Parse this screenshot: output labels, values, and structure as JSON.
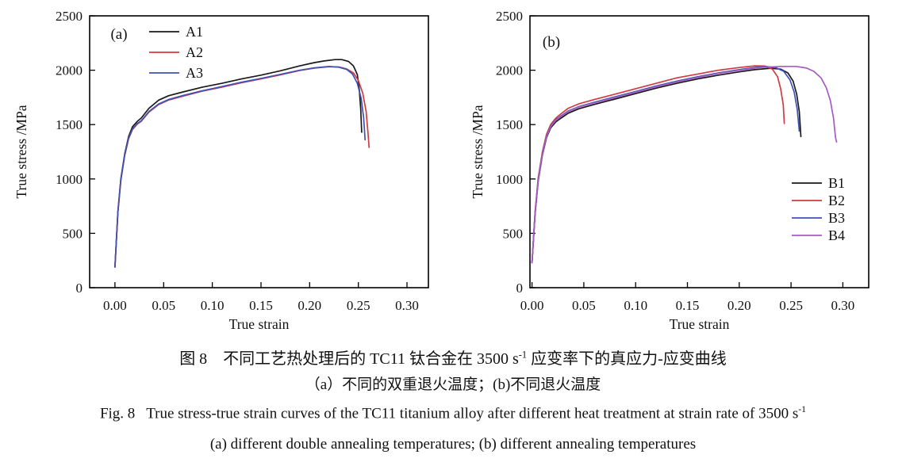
{
  "captions": {
    "zh_line1": {
      "pre": "图 8　不同工艺热处理后的 TC11 钛合金在 3500 s",
      "sup": "-1",
      "post": " 应变率下的真应力-应变曲线"
    },
    "zh_line2": "（a）不同的双重退火温度；(b)不同退火温度",
    "en_line1": {
      "pre": "Fig. 8   True stress-true strain curves of the TC11 titanium alloy after different heat treatment at strain rate of 3500 s",
      "sup": "-1"
    },
    "en_line2": "(a) different double annealing temperatures; (b) different annealing temperatures"
  },
  "colors": {
    "axis": "#000000",
    "black_series": "#1a1a1a",
    "red_series": "#d23a41",
    "blue_series": "#3f51b5",
    "purple_series": "#a55cc0"
  },
  "chart_data": [
    {
      "type": "line",
      "panel_label": "(a)",
      "xlabel": "True strain",
      "ylabel": "True stress /MPa",
      "xlim": [
        -0.026,
        0.322
      ],
      "ylim": [
        0,
        2500
      ],
      "x_ticks": [
        0.0,
        0.05,
        0.1,
        0.15,
        0.2,
        0.25,
        0.3
      ],
      "x_tick_labels": [
        "0.00",
        "0.05",
        "0.10",
        "0.15",
        "0.20",
        "0.25",
        "0.30"
      ],
      "y_ticks": [
        0,
        500,
        1000,
        1500,
        2000,
        2500
      ],
      "y_tick_labels": [
        "0",
        "500",
        "1000",
        "1500",
        "2000",
        "2500"
      ],
      "grid": false,
      "legend_position": "top-left-inside",
      "series": [
        {
          "name": "A1",
          "color": "#1a1a1a",
          "points": [
            [
              0.0,
              190
            ],
            [
              0.003,
              700
            ],
            [
              0.006,
              1000
            ],
            [
              0.01,
              1230
            ],
            [
              0.014,
              1390
            ],
            [
              0.018,
              1480
            ],
            [
              0.023,
              1530
            ],
            [
              0.027,
              1560
            ],
            [
              0.035,
              1650
            ],
            [
              0.045,
              1725
            ],
            [
              0.055,
              1765
            ],
            [
              0.07,
              1800
            ],
            [
              0.09,
              1845
            ],
            [
              0.11,
              1880
            ],
            [
              0.13,
              1920
            ],
            [
              0.15,
              1955
            ],
            [
              0.17,
              1995
            ],
            [
              0.19,
              2040
            ],
            [
              0.205,
              2070
            ],
            [
              0.215,
              2085
            ],
            [
              0.226,
              2098
            ],
            [
              0.233,
              2098
            ],
            [
              0.24,
              2080
            ],
            [
              0.245,
              2040
            ],
            [
              0.249,
              1960
            ],
            [
              0.251,
              1820
            ],
            [
              0.2525,
              1640
            ],
            [
              0.2535,
              1430
            ]
          ]
        },
        {
          "name": "A2",
          "color": "#d23a41",
          "points": [
            [
              0.0,
              190
            ],
            [
              0.003,
              690
            ],
            [
              0.006,
              985
            ],
            [
              0.01,
              1215
            ],
            [
              0.014,
              1370
            ],
            [
              0.018,
              1455
            ],
            [
              0.023,
              1505
            ],
            [
              0.027,
              1530
            ],
            [
              0.035,
              1615
            ],
            [
              0.045,
              1685
            ],
            [
              0.055,
              1725
            ],
            [
              0.07,
              1762
            ],
            [
              0.09,
              1808
            ],
            [
              0.11,
              1845
            ],
            [
              0.13,
              1885
            ],
            [
              0.15,
              1920
            ],
            [
              0.17,
              1958
            ],
            [
              0.19,
              1998
            ],
            [
              0.205,
              2020
            ],
            [
              0.22,
              2032
            ],
            [
              0.23,
              2030
            ],
            [
              0.238,
              2012
            ],
            [
              0.245,
              1975
            ],
            [
              0.25,
              1905
            ],
            [
              0.2545,
              1790
            ],
            [
              0.258,
              1620
            ],
            [
              0.26,
              1420
            ],
            [
              0.261,
              1290
            ]
          ]
        },
        {
          "name": "A3",
          "color": "#3f51b5",
          "points": [
            [
              0.0,
              190
            ],
            [
              0.003,
              695
            ],
            [
              0.006,
              990
            ],
            [
              0.01,
              1220
            ],
            [
              0.014,
              1375
            ],
            [
              0.018,
              1460
            ],
            [
              0.023,
              1510
            ],
            [
              0.027,
              1535
            ],
            [
              0.035,
              1620
            ],
            [
              0.045,
              1690
            ],
            [
              0.055,
              1730
            ],
            [
              0.07,
              1768
            ],
            [
              0.09,
              1812
            ],
            [
              0.11,
              1850
            ],
            [
              0.13,
              1890
            ],
            [
              0.15,
              1925
            ],
            [
              0.17,
              1962
            ],
            [
              0.19,
              2000
            ],
            [
              0.205,
              2022
            ],
            [
              0.22,
              2034
            ],
            [
              0.23,
              2028
            ],
            [
              0.238,
              2008
            ],
            [
              0.244,
              1965
            ],
            [
              0.249,
              1880
            ],
            [
              0.253,
              1740
            ],
            [
              0.2555,
              1560
            ],
            [
              0.257,
              1360
            ]
          ]
        }
      ]
    },
    {
      "type": "line",
      "panel_label": "(b)",
      "xlabel": "True strain",
      "ylabel": "True stress /MPa",
      "xlim": [
        -0.002,
        0.325
      ],
      "ylim": [
        0,
        2500
      ],
      "x_ticks": [
        0.0,
        0.05,
        0.1,
        0.15,
        0.2,
        0.25,
        0.3
      ],
      "x_tick_labels": [
        "0.00",
        "0.05",
        "0.10",
        "0.15",
        "0.20",
        "0.25",
        "0.30"
      ],
      "y_ticks": [
        0,
        500,
        1000,
        1500,
        2000,
        2500
      ],
      "y_tick_labels": [
        "0",
        "500",
        "1000",
        "1500",
        "2000",
        "2500"
      ],
      "grid": false,
      "legend_position": "right-inside",
      "series": [
        {
          "name": "B1",
          "color": "#1a1a1a",
          "points": [
            [
              0.0,
              230
            ],
            [
              0.003,
              680
            ],
            [
              0.006,
              980
            ],
            [
              0.01,
              1220
            ],
            [
              0.014,
              1380
            ],
            [
              0.018,
              1470
            ],
            [
              0.023,
              1525
            ],
            [
              0.028,
              1560
            ],
            [
              0.035,
              1605
            ],
            [
              0.045,
              1645
            ],
            [
              0.06,
              1685
            ],
            [
              0.08,
              1735
            ],
            [
              0.1,
              1785
            ],
            [
              0.12,
              1835
            ],
            [
              0.14,
              1880
            ],
            [
              0.16,
              1920
            ],
            [
              0.18,
              1955
            ],
            [
              0.2,
              1985
            ],
            [
              0.215,
              2005
            ],
            [
              0.23,
              2018
            ],
            [
              0.24,
              2010
            ],
            [
              0.247,
              1975
            ],
            [
              0.252,
              1900
            ],
            [
              0.2555,
              1780
            ],
            [
              0.258,
              1620
            ],
            [
              0.2595,
              1390
            ]
          ]
        },
        {
          "name": "B2",
          "color": "#d23a41",
          "points": [
            [
              0.0,
              230
            ],
            [
              0.003,
              700
            ],
            [
              0.006,
              1010
            ],
            [
              0.01,
              1250
            ],
            [
              0.014,
              1410
            ],
            [
              0.018,
              1500
            ],
            [
              0.023,
              1560
            ],
            [
              0.028,
              1600
            ],
            [
              0.035,
              1650
            ],
            [
              0.045,
              1690
            ],
            [
              0.06,
              1730
            ],
            [
              0.08,
              1780
            ],
            [
              0.1,
              1830
            ],
            [
              0.12,
              1880
            ],
            [
              0.14,
              1930
            ],
            [
              0.16,
              1965
            ],
            [
              0.18,
              2000
            ],
            [
              0.2,
              2025
            ],
            [
              0.215,
              2040
            ],
            [
              0.225,
              2038
            ],
            [
              0.232,
              2010
            ],
            [
              0.237,
              1940
            ],
            [
              0.24,
              1830
            ],
            [
              0.2425,
              1680
            ],
            [
              0.2435,
              1510
            ]
          ]
        },
        {
          "name": "B3",
          "color": "#3f51b5",
          "points": [
            [
              0.0,
              230
            ],
            [
              0.003,
              690
            ],
            [
              0.006,
              995
            ],
            [
              0.01,
              1235
            ],
            [
              0.014,
              1395
            ],
            [
              0.018,
              1485
            ],
            [
              0.023,
              1545
            ],
            [
              0.028,
              1580
            ],
            [
              0.035,
              1625
            ],
            [
              0.045,
              1665
            ],
            [
              0.06,
              1705
            ],
            [
              0.08,
              1755
            ],
            [
              0.1,
              1805
            ],
            [
              0.12,
              1855
            ],
            [
              0.14,
              1900
            ],
            [
              0.16,
              1940
            ],
            [
              0.18,
              1975
            ],
            [
              0.2,
              2005
            ],
            [
              0.215,
              2025
            ],
            [
              0.225,
              2035
            ],
            [
              0.235,
              2025
            ],
            [
              0.243,
              1990
            ],
            [
              0.249,
              1910
            ],
            [
              0.253,
              1800
            ],
            [
              0.256,
              1640
            ],
            [
              0.258,
              1440
            ]
          ]
        },
        {
          "name": "B4",
          "color": "#a55cc0",
          "points": [
            [
              0.0,
              230
            ],
            [
              0.003,
              690
            ],
            [
              0.006,
              990
            ],
            [
              0.01,
              1230
            ],
            [
              0.014,
              1390
            ],
            [
              0.018,
              1480
            ],
            [
              0.023,
              1540
            ],
            [
              0.028,
              1575
            ],
            [
              0.035,
              1620
            ],
            [
              0.045,
              1660
            ],
            [
              0.06,
              1700
            ],
            [
              0.08,
              1748
            ],
            [
              0.1,
              1798
            ],
            [
              0.12,
              1848
            ],
            [
              0.14,
              1893
            ],
            [
              0.16,
              1933
            ],
            [
              0.18,
              1970
            ],
            [
              0.2,
              2000
            ],
            [
              0.22,
              2025
            ],
            [
              0.24,
              2035
            ],
            [
              0.255,
              2035
            ],
            [
              0.265,
              2020
            ],
            [
              0.272,
              1990
            ],
            [
              0.279,
              1930
            ],
            [
              0.284,
              1840
            ],
            [
              0.288,
              1720
            ],
            [
              0.291,
              1560
            ],
            [
              0.293,
              1380
            ],
            [
              0.294,
              1340
            ]
          ]
        }
      ]
    }
  ]
}
